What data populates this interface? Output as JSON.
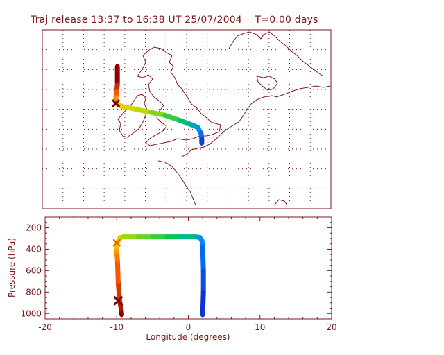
{
  "title": "Traj release 13:37 to 16:38 UT 25/07/2004    T=0.00 days",
  "colors": {
    "frame": "#7a1a1a",
    "grid": "#7a1a1a",
    "coast": "#7a1a1a"
  },
  "chart_data": [
    {
      "type": "line",
      "panel": "map",
      "title": "Traj release 13:37 to 16:38 UT 25/07/2004    T=0.00 days",
      "grid": true,
      "xlim": [
        -20,
        20
      ],
      "ylim": [
        44,
        62
      ],
      "series": [
        {
          "lon": [
            -9.6,
            -9.6,
            -9.7,
            -9.8,
            -9.8,
            -9.0,
            -7.0,
            -5.0,
            -3.0,
            -1.0,
            0.5,
            1.5,
            2.0,
            2.1,
            2.1
          ],
          "lat": [
            58.3,
            56.5,
            55.8,
            55.2,
            54.6,
            54.3,
            54.0,
            53.7,
            53.4,
            52.9,
            52.5,
            52.2,
            51.6,
            51.0,
            50.6
          ]
        }
      ]
    },
    {
      "type": "line",
      "panel": "pressure",
      "xlabel": "Longitude  (degrees)",
      "ylabel": "Pressure  (hPa)",
      "xlim": [
        -20,
        20
      ],
      "ylim": [
        1050,
        100
      ],
      "xticks": [
        "-20",
        "-10",
        "0",
        "10",
        "20"
      ],
      "yticks": [
        "200",
        "400",
        "600",
        "800",
        "1000"
      ],
      "series": [
        {
          "lon": [
            -9.3,
            -9.4,
            -9.6,
            -9.8,
            -9.9,
            -10.0,
            -10.0,
            -9.9,
            -9.7,
            -9.5,
            -9.0,
            -7.0,
            -5.0,
            -3.0,
            -1.0,
            1.0,
            1.6,
            1.9,
            2.0,
            2.1,
            2.1,
            2.0
          ],
          "pressure": [
            1010,
            950,
            880,
            700,
            500,
            420,
            380,
            340,
            310,
            290,
            285,
            285,
            285,
            285,
            285,
            285,
            290,
            320,
            380,
            600,
            800,
            1010
          ]
        }
      ]
    }
  ]
}
